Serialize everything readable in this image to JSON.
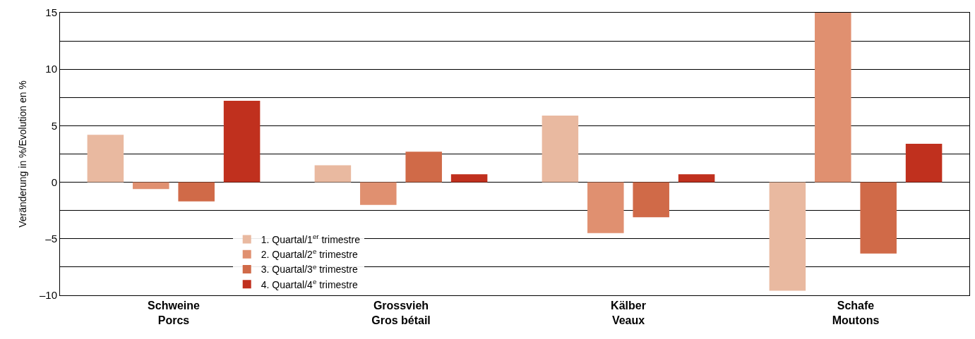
{
  "chart_data": {
    "type": "bar",
    "ylabel": "Veränderung in %/Evolution en %",
    "categories": [
      "Schweine\nPorcs",
      "Grossvieh\nGros bétail",
      "Kälber\nVeaux",
      "Schafe\nMoutons"
    ],
    "series": [
      {
        "name": "1. Quartal/1$^{er}$ trimestre",
        "color": "#e9b9a0",
        "values": [
          4.2,
          1.5,
          5.9,
          -9.6
        ]
      },
      {
        "name": "2. Quartal/2$^{e}$ trimestre",
        "color": "#e09070",
        "values": [
          -0.6,
          -2.0,
          -4.5,
          15
        ]
      },
      {
        "name": "3. Quartal/3$^{e}$ trimestre",
        "color": "#d06a48",
        "values": [
          -1.7,
          2.7,
          -3.1,
          -6.3
        ]
      },
      {
        "name": "4. Quartal/4$^{e}$ trimestre",
        "color": "#c0301e",
        "values": [
          7.2,
          0.7,
          0.7,
          3.4
        ]
      }
    ],
    "ylim": [
      -10,
      15
    ],
    "yticks": [
      {
        "value": -10,
        "label": "–10"
      },
      {
        "value": -7.5,
        "label": null
      },
      {
        "value": -5,
        "label": "–5"
      },
      {
        "value": -2.5,
        "label": null
      },
      0,
      {
        "value": 2.5,
        "label": null
      },
      5,
      {
        "value": 7.5,
        "label": null
      },
      10,
      {
        "value": 12.5,
        "label": null
      },
      15
    ],
    "grid": "y",
    "legend": "bottom left"
  }
}
